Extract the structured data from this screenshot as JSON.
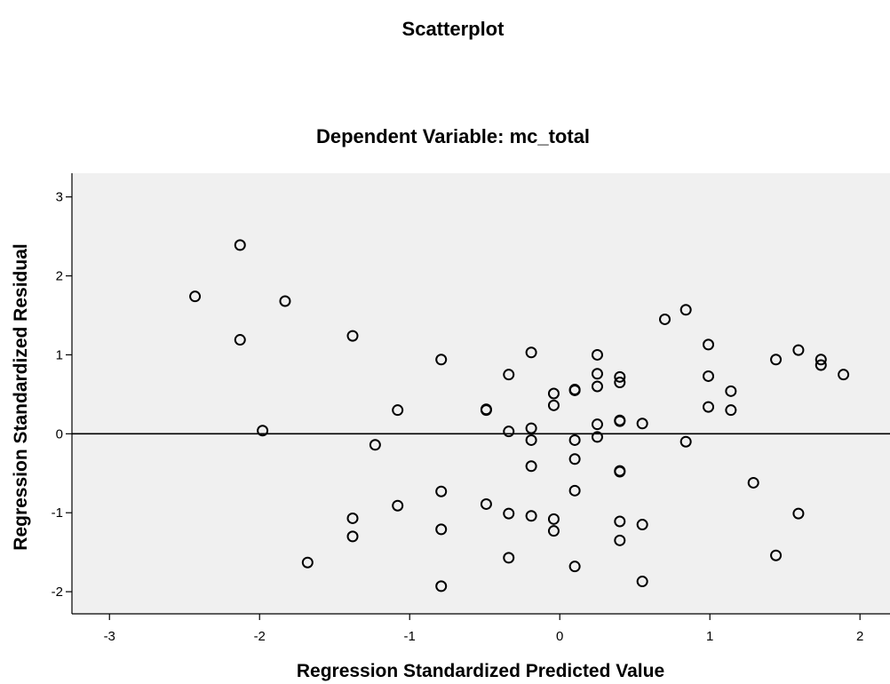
{
  "chart_data": {
    "type": "scatter",
    "title": "Scatterplot",
    "subtitle": "Dependent Variable: mc_total",
    "xlabel": "Regression Standardized Predicted Value",
    "ylabel": "Regression Standardized Residual",
    "xlim": [
      -3.25,
      2.2
    ],
    "ylim": [
      -2.28,
      3.3
    ],
    "xticks": [
      -3,
      -2,
      -1,
      0,
      1,
      2
    ],
    "yticks": [
      -2,
      -1,
      0,
      1,
      2,
      3
    ],
    "reference_line_y": 0,
    "grid": false,
    "legend": "none",
    "background": "#f0f0f0",
    "marker_color": "#000000",
    "points": [
      [
        -2.43,
        1.74
      ],
      [
        -2.13,
        2.39
      ],
      [
        -2.13,
        1.19
      ],
      [
        -1.98,
        0.04
      ],
      [
        -1.83,
        1.68
      ],
      [
        -1.68,
        -1.63
      ],
      [
        -1.38,
        1.24
      ],
      [
        -1.38,
        -1.07
      ],
      [
        -1.38,
        -1.3
      ],
      [
        -1.23,
        -0.14
      ],
      [
        -1.08,
        0.3
      ],
      [
        -1.08,
        -0.91
      ],
      [
        -0.79,
        0.94
      ],
      [
        -0.79,
        -0.73
      ],
      [
        -0.79,
        -1.21
      ],
      [
        -0.79,
        -1.93
      ],
      [
        -0.49,
        0.31
      ],
      [
        -0.49,
        0.3
      ],
      [
        -0.49,
        -0.89
      ],
      [
        -0.34,
        0.75
      ],
      [
        -0.34,
        0.03
      ],
      [
        -0.34,
        -1.01
      ],
      [
        -0.34,
        -1.57
      ],
      [
        -0.19,
        1.03
      ],
      [
        -0.19,
        0.07
      ],
      [
        -0.19,
        -0.08
      ],
      [
        -0.19,
        -0.41
      ],
      [
        -0.19,
        -1.04
      ],
      [
        -0.04,
        0.51
      ],
      [
        -0.04,
        0.36
      ],
      [
        -0.04,
        -1.08
      ],
      [
        -0.04,
        -1.23
      ],
      [
        0.1,
        0.56
      ],
      [
        0.1,
        0.55
      ],
      [
        0.1,
        -0.08
      ],
      [
        0.1,
        -0.32
      ],
      [
        0.1,
        -0.72
      ],
      [
        0.1,
        -1.68
      ],
      [
        0.25,
        1.0
      ],
      [
        0.25,
        0.76
      ],
      [
        0.25,
        0.6
      ],
      [
        0.25,
        0.12
      ],
      [
        0.25,
        -0.04
      ],
      [
        0.4,
        0.72
      ],
      [
        0.4,
        0.65
      ],
      [
        0.4,
        0.17
      ],
      [
        0.4,
        0.16
      ],
      [
        0.4,
        -0.47
      ],
      [
        0.4,
        -0.48
      ],
      [
        0.4,
        -1.11
      ],
      [
        0.4,
        -1.35
      ],
      [
        0.55,
        0.13
      ],
      [
        0.55,
        -1.15
      ],
      [
        0.55,
        -1.87
      ],
      [
        0.7,
        1.45
      ],
      [
        0.84,
        1.57
      ],
      [
        0.84,
        -0.1
      ],
      [
        0.99,
        1.13
      ],
      [
        0.99,
        0.73
      ],
      [
        0.99,
        0.34
      ],
      [
        1.14,
        0.54
      ],
      [
        1.14,
        0.3
      ],
      [
        1.29,
        -0.62
      ],
      [
        1.44,
        0.94
      ],
      [
        1.44,
        -1.54
      ],
      [
        1.59,
        1.06
      ],
      [
        1.59,
        -1.01
      ],
      [
        1.74,
        0.94
      ],
      [
        1.74,
        0.87
      ],
      [
        1.89,
        0.75
      ]
    ]
  }
}
